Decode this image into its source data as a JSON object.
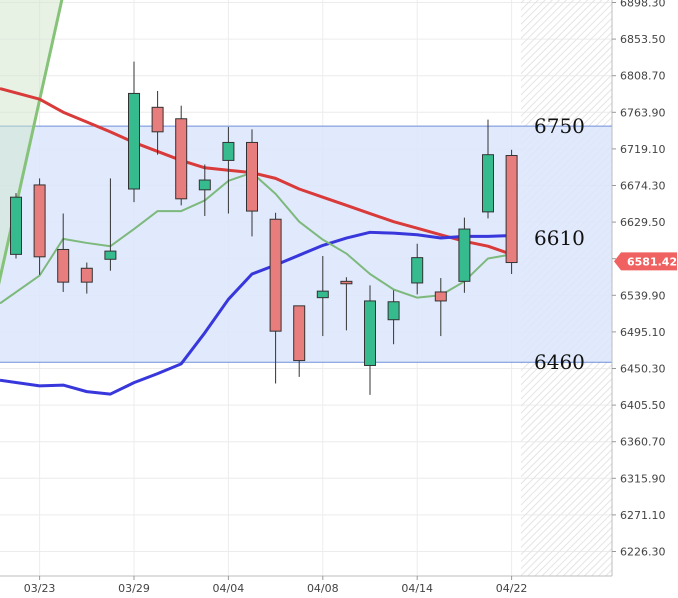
{
  "chart_data": {
    "type": "candlestick",
    "y_axis": {
      "range": [
        6190,
        6905
      ],
      "ticks": [
        "6898.30",
        "6853.50",
        "6808.70",
        "6763.90",
        "6719.10",
        "6674.30",
        "6629.50",
        "6584.70",
        "6539.90",
        "6495.10",
        "6450.30",
        "6405.50",
        "6360.70",
        "6315.90",
        "6271.10",
        "6226.30"
      ],
      "position": "right"
    },
    "x_axis": {
      "ticks": [
        {
          "label": "03/23",
          "index": 1
        },
        {
          "label": "03/29",
          "index": 5
        },
        {
          "label": "04/04",
          "index": 9
        },
        {
          "label": "04/08",
          "index": 13
        },
        {
          "label": "04/14",
          "index": 17
        },
        {
          "label": "04/22",
          "index": 21
        }
      ]
    },
    "candles": [
      {
        "i": 0,
        "open": 6590,
        "close": 6660,
        "high": 6665,
        "low": 6585
      },
      {
        "i": 1,
        "open": 6675,
        "close": 6587,
        "high": 6683,
        "low": 6565
      },
      {
        "i": 2,
        "open": 6596,
        "close": 6556,
        "high": 6640,
        "low": 6544
      },
      {
        "i": 3,
        "open": 6573,
        "close": 6556,
        "high": 6580,
        "low": 6542
      },
      {
        "i": 4,
        "open": 6584,
        "close": 6594,
        "high": 6683,
        "low": 6570
      },
      {
        "i": 5,
        "open": 6670,
        "close": 6787,
        "high": 6826,
        "low": 6654
      },
      {
        "i": 6,
        "open": 6770,
        "close": 6740,
        "high": 6790,
        "low": 6712
      },
      {
        "i": 7,
        "open": 6756,
        "close": 6658,
        "high": 6772,
        "low": 6650
      },
      {
        "i": 8,
        "open": 6669,
        "close": 6681,
        "high": 6700,
        "low": 6637
      },
      {
        "i": 9,
        "open": 6705,
        "close": 6727,
        "high": 6746,
        "low": 6640
      },
      {
        "i": 10,
        "open": 6727,
        "close": 6643,
        "high": 6743,
        "low": 6612
      },
      {
        "i": 11,
        "open": 6633,
        "close": 6496,
        "high": 6641,
        "low": 6432
      },
      {
        "i": 12,
        "open": 6527,
        "close": 6460,
        "high": 6527,
        "low": 6440
      },
      {
        "i": 13,
        "open": 6537,
        "close": 6545,
        "high": 6588,
        "low": 6490
      },
      {
        "i": 14,
        "open": 6557,
        "close": 6554,
        "high": 6562,
        "low": 6497
      },
      {
        "i": 15,
        "open": 6454,
        "close": 6533,
        "high": 6552,
        "low": 6418
      },
      {
        "i": 16,
        "open": 6510,
        "close": 6532,
        "high": 6546,
        "low": 6480
      },
      {
        "i": 17,
        "open": 6555,
        "close": 6586,
        "high": 6603,
        "low": 6541
      },
      {
        "i": 18,
        "open": 6544,
        "close": 6533,
        "high": 6561,
        "low": 6490
      },
      {
        "i": 19,
        "open": 6557,
        "close": 6621,
        "high": 6635,
        "low": 6543
      },
      {
        "i": 20,
        "open": 6642,
        "close": 6712,
        "high": 6755,
        "low": 6634
      },
      {
        "i": 21,
        "open": 6711,
        "close": 6580,
        "high": 6718,
        "low": 6566
      }
    ],
    "series": [
      {
        "name": "",
        "color": "#d93a3a",
        "values": [
          6793,
          6780,
          6764,
          6752,
          6740,
          6727,
          6716,
          6705,
          6696,
          6693,
          6690,
          6683,
          6670,
          6660,
          6650,
          6640,
          6630,
          6622,
          6614,
          6606,
          6600,
          6590
        ]
      },
      {
        "name": "",
        "color": "#3737dc",
        "values": [
          6436,
          6429,
          6430,
          6422,
          6419,
          6433,
          6444,
          6456,
          6494,
          6535,
          6566,
          6577,
          6589,
          6601,
          6610,
          6617,
          6616,
          6614,
          6610,
          6612,
          6612,
          6613
        ]
      },
      {
        "name": "",
        "color": "#7db97d",
        "values": [
          6530,
          6564,
          6609,
          6604,
          6600,
          6621,
          6643,
          6643,
          6656,
          6680,
          6690,
          6664,
          6630,
          6608,
          6591,
          6566,
          6547,
          6537,
          6540,
          6557,
          6585,
          6590
        ]
      }
    ],
    "steep_line": {
      "color": "#86c379",
      "values": [
        6530,
        6660,
        6790,
        6920
      ]
    },
    "levels": [
      {
        "label": "6750",
        "value": 6747
      },
      {
        "label": "6610",
        "value": 6610
      },
      {
        "label": "6460",
        "value": 6458
      }
    ],
    "band": {
      "from": 6458,
      "to": 6747,
      "color": "#dce6fb"
    },
    "current_price": {
      "label": "6581.42",
      "value": 6581.42,
      "color": "#f06262"
    },
    "up_color": "#35bb8e",
    "down_color": "#e77d7d",
    "grid": true
  }
}
